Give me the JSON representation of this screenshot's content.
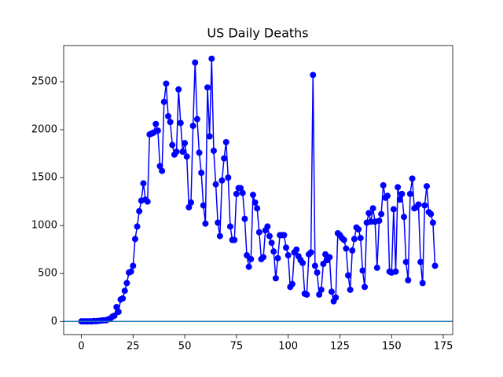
{
  "chart_data": {
    "type": "line",
    "title": "US Daily Deaths",
    "x": [
      0,
      1,
      2,
      3,
      4,
      5,
      6,
      7,
      8,
      9,
      10,
      11,
      12,
      13,
      14,
      15,
      16,
      17,
      18,
      19,
      20,
      21,
      22,
      23,
      24,
      25,
      26,
      27,
      28,
      29,
      30,
      31,
      32,
      33,
      34,
      35,
      36,
      37,
      38,
      39,
      40,
      41,
      42,
      43,
      44,
      45,
      46,
      47,
      48,
      49,
      50,
      51,
      52,
      53,
      54,
      55,
      56,
      57,
      58,
      59,
      60,
      61,
      62,
      63,
      64,
      65,
      66,
      67,
      68,
      69,
      70,
      71,
      72,
      73,
      74,
      75,
      76,
      77,
      78,
      79,
      80,
      81,
      82,
      83,
      84,
      85,
      86,
      87,
      88,
      89,
      90,
      91,
      92,
      93,
      94,
      95,
      96,
      97,
      98,
      99,
      100,
      101,
      102,
      103,
      104,
      105,
      106,
      107,
      108,
      109,
      110,
      111,
      112,
      113,
      114,
      115,
      116,
      117,
      118,
      119,
      120,
      121,
      122,
      123,
      124,
      125,
      126,
      127,
      128,
      129,
      130,
      131,
      132,
      133,
      134,
      135,
      136,
      137,
      138,
      139,
      140,
      141,
      142,
      143,
      144,
      145,
      146,
      147,
      148,
      149,
      150,
      151,
      152,
      153,
      154,
      155,
      156,
      157,
      158,
      159,
      160,
      161,
      162,
      163,
      164,
      165,
      166,
      167,
      168,
      169,
      170,
      171
    ],
    "values": [
      1,
      0,
      1,
      0,
      1,
      0,
      4,
      2,
      5,
      7,
      10,
      12,
      12,
      22,
      30,
      50,
      60,
      150,
      100,
      230,
      240,
      320,
      400,
      510,
      520,
      580,
      860,
      990,
      1150,
      1260,
      1440,
      1270,
      1250,
      1950,
      1960,
      1970,
      2060,
      1990,
      1620,
      1570,
      2290,
      2480,
      2140,
      2080,
      1840,
      1740,
      1770,
      2420,
      2070,
      1770,
      1860,
      1720,
      1190,
      1240,
      2040,
      2700,
      2110,
      1760,
      1550,
      1210,
      1020,
      2440,
      1930,
      2740,
      1780,
      1430,
      1030,
      890,
      1470,
      1700,
      1870,
      1500,
      990,
      850,
      850,
      1330,
      1390,
      1390,
      1340,
      1070,
      690,
      570,
      650,
      1320,
      1240,
      1180,
      930,
      650,
      670,
      950,
      990,
      890,
      820,
      730,
      450,
      660,
      900,
      900,
      900,
      770,
      690,
      360,
      390,
      720,
      750,
      680,
      640,
      610,
      290,
      280,
      700,
      720,
      2570,
      580,
      510,
      280,
      330,
      600,
      700,
      640,
      670,
      310,
      210,
      250,
      920,
      900,
      870,
      850,
      760,
      480,
      330,
      740,
      860,
      980,
      960,
      870,
      530,
      360,
      1030,
      1130,
      1040,
      1180,
      1040,
      560,
      1050,
      1120,
      1420,
      1290,
      1310,
      520,
      510,
      1170,
      520,
      1400,
      1270,
      1330,
      1090,
      620,
      430,
      1330,
      1490,
      1180,
      1190,
      1220,
      620,
      400,
      1210,
      1410,
      1140,
      1120,
      1030,
      580
    ],
    "color": "#0000ff",
    "hlines": [
      {
        "y": 0,
        "color": "#1f77b4"
      }
    ],
    "xlim": [
      -8.55,
      179.55
    ],
    "xticks": [
      0,
      25,
      50,
      75,
      100,
      125,
      150,
      175
    ],
    "ylim": [
      -137,
      2877
    ],
    "yticks": [
      0,
      500,
      1000,
      1500,
      2000,
      2500
    ],
    "grid": false
  }
}
